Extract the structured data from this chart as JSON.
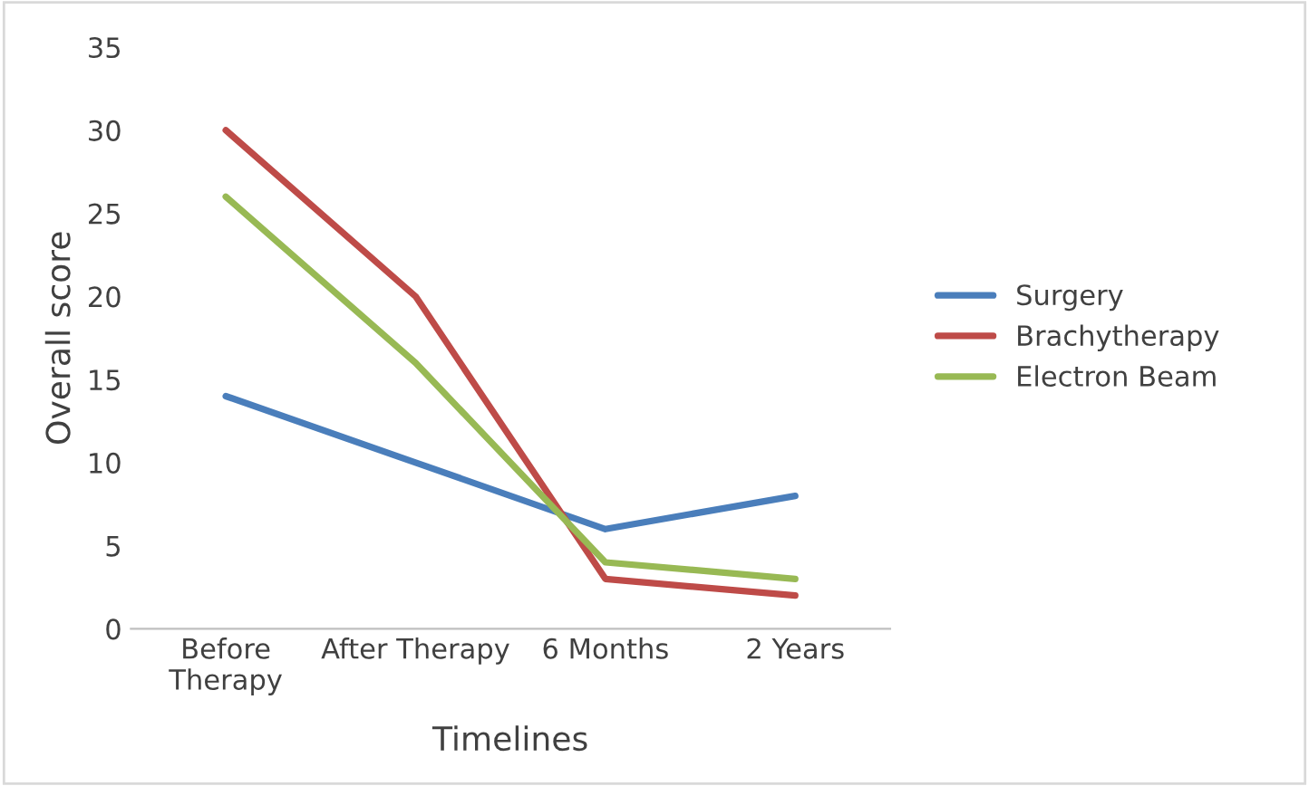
{
  "chart_data": {
    "type": "line",
    "xlabel": "Timelines",
    "ylabel": "Overall score",
    "categories": [
      "Before\nTherapy",
      "After Therapy",
      "6 Months",
      "2 Years"
    ],
    "series": [
      {
        "name": "Surgery",
        "color": "#4a7ebb",
        "values": [
          14,
          10,
          6,
          8
        ]
      },
      {
        "name": "Brachytherapy",
        "color": "#be4b48",
        "values": [
          30,
          20,
          3,
          2
        ]
      },
      {
        "name": "Electron Beam",
        "color": "#98b954",
        "values": [
          26,
          16,
          4,
          3
        ]
      }
    ],
    "ylim": [
      0,
      35
    ],
    "yticks": [
      0,
      5,
      10,
      15,
      20,
      25,
      30,
      35
    ],
    "grid": false,
    "legend": "right",
    "marker": "none",
    "line_style": "solid"
  }
}
